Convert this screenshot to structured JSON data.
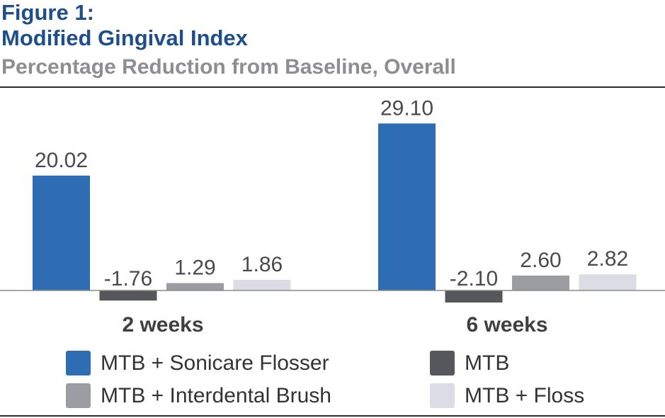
{
  "header": {
    "figure_label": "Figure 1:",
    "title": "Modified Gingival Index",
    "subtitle": "Percentage Reduction from Baseline, Overall"
  },
  "chart_data": {
    "type": "bar",
    "title": "Modified Gingival Index",
    "subtitle": "Percentage Reduction from Baseline, Overall",
    "xlabel": "",
    "ylabel": "",
    "categories": [
      "2 weeks",
      "6 weeks"
    ],
    "series": [
      {
        "name": "MTB + Sonicare Flosser",
        "color": "#2e6db4",
        "values": [
          20.02,
          29.1
        ],
        "labels": [
          "20.02",
          "29.10"
        ]
      },
      {
        "name": "MTB",
        "color": "#55575c",
        "values": [
          -1.76,
          -2.1
        ],
        "labels": [
          "-1.76",
          "-2.10"
        ]
      },
      {
        "name": "MTB + Interdental Brush",
        "color": "#9b9da3",
        "values": [
          1.29,
          2.6
        ],
        "labels": [
          "1.29",
          "2.60"
        ]
      },
      {
        "name": "MTB + Floss",
        "color": "#dcdce6",
        "values": [
          1.86,
          2.82
        ],
        "labels": [
          "1.86",
          "2.82"
        ]
      }
    ],
    "ylim": [
      -3,
      30
    ],
    "grid": false,
    "legend_position": "bottom"
  }
}
